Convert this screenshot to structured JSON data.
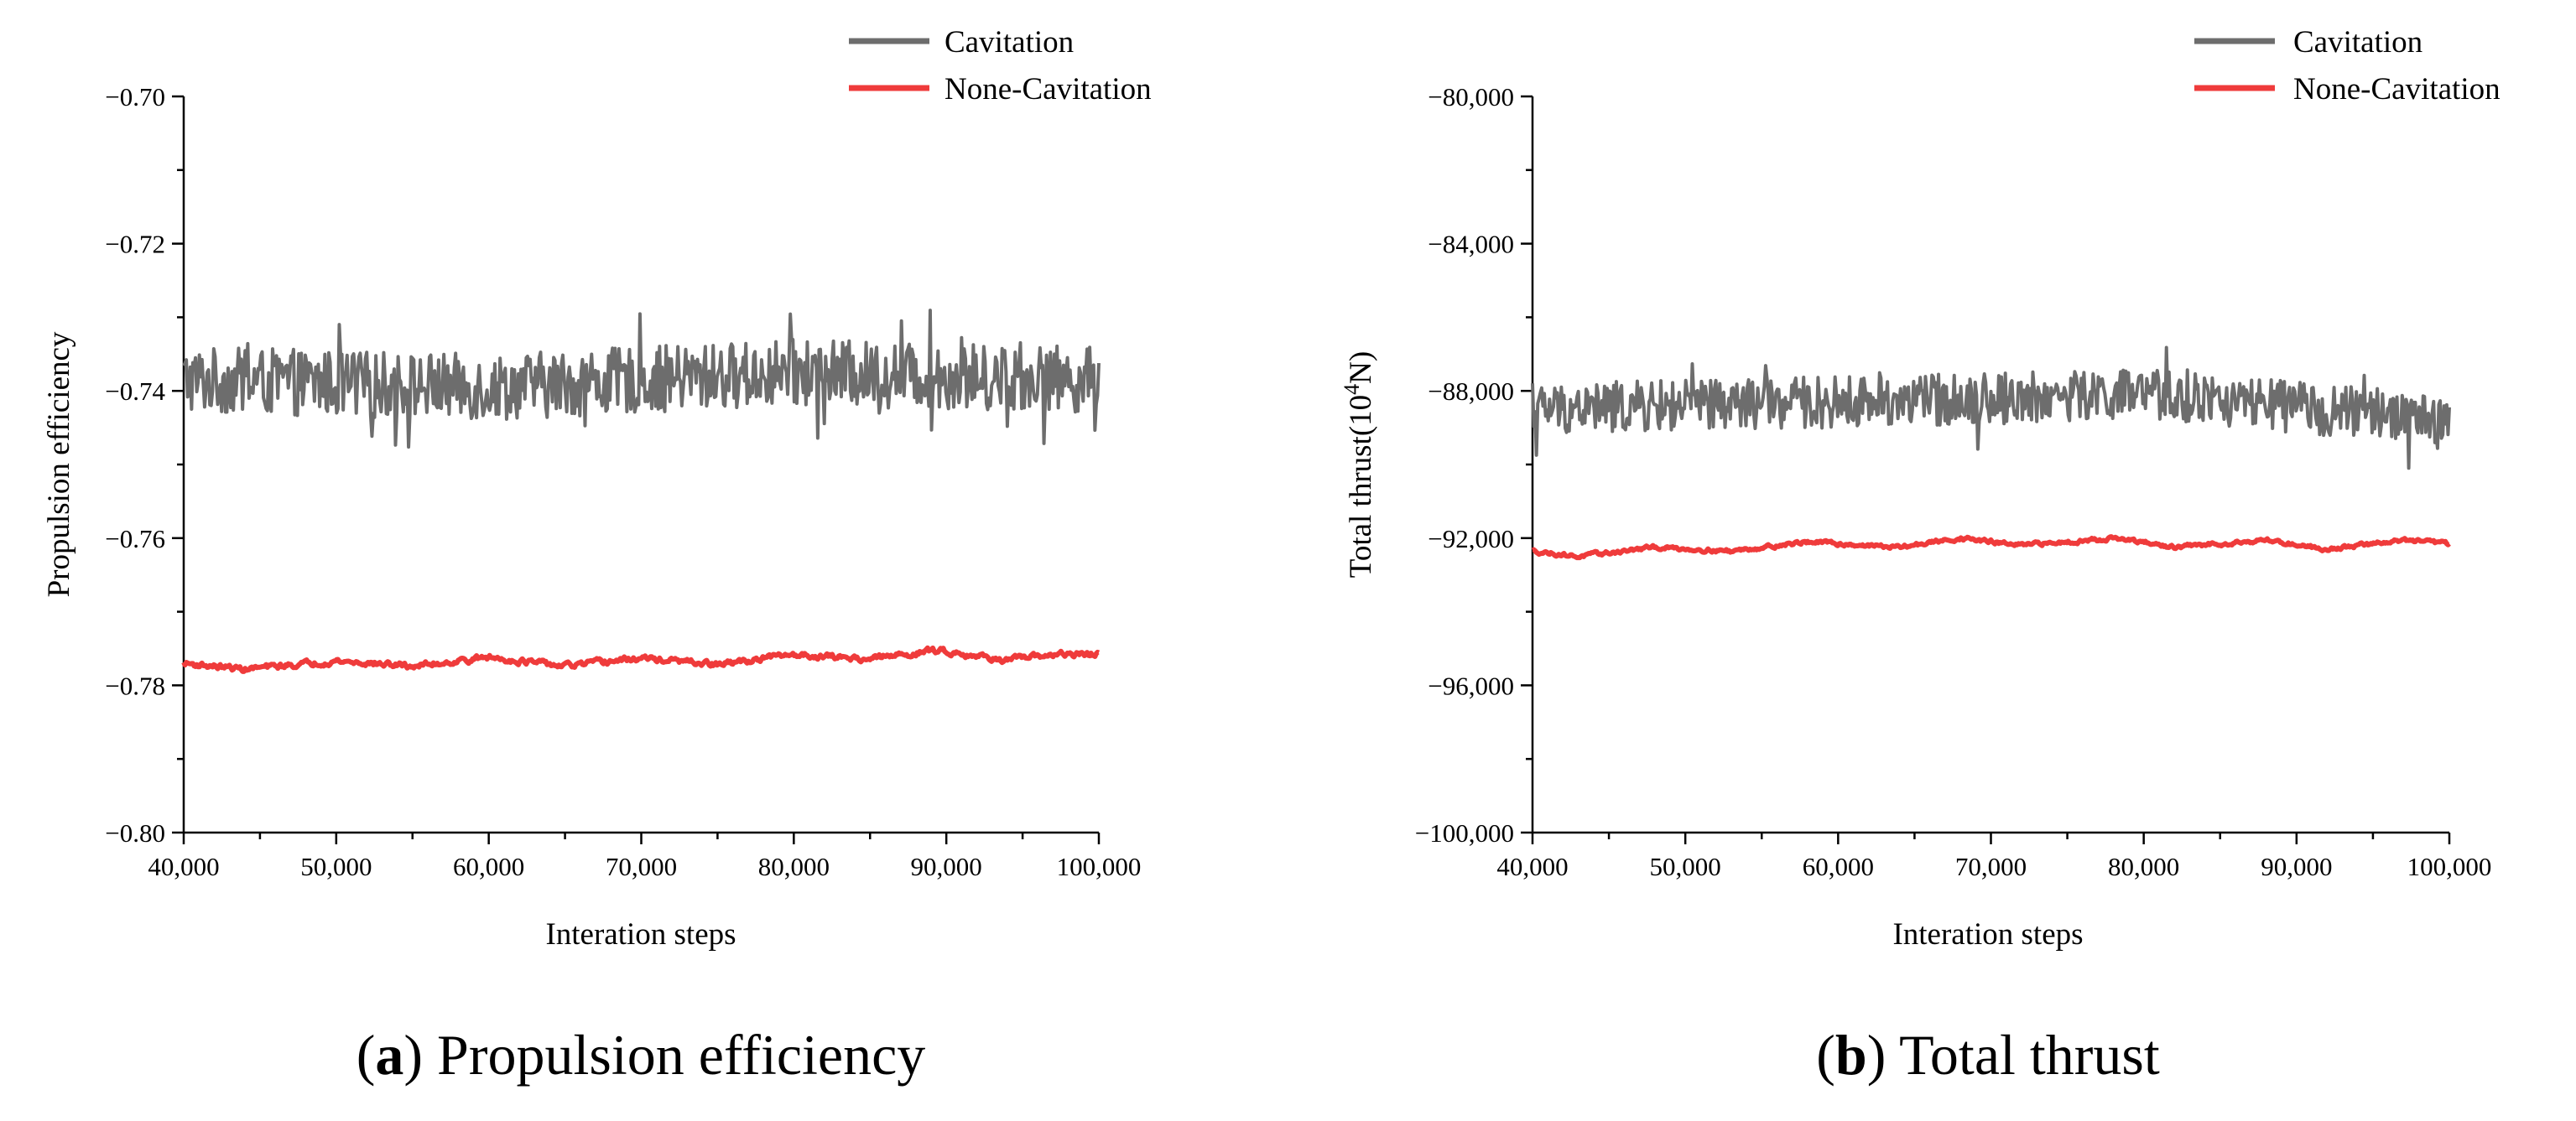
{
  "chart_data": [
    {
      "type": "line",
      "title": "Propulsion efficiency",
      "caption": {
        "letter": "a",
        "text": " Propulsion efficiency"
      },
      "xlabel": "Interation steps",
      "ylabel": "Propulsion efficiency",
      "xlim": [
        40000,
        100000
      ],
      "ylim": [
        -0.8,
        -0.7
      ],
      "x_ticks": [
        40000,
        50000,
        60000,
        70000,
        80000,
        90000,
        100000
      ],
      "x_tick_labels": [
        "40,000",
        "50,000",
        "60,000",
        "70,000",
        "80,000",
        "90,000",
        "100,000"
      ],
      "y_ticks": [
        -0.8,
        -0.78,
        -0.76,
        -0.74,
        -0.72,
        -0.7
      ],
      "y_tick_labels": [
        "−0.80",
        "−0.78",
        "−0.76",
        "−0.74",
        "−0.72",
        "−0.70"
      ],
      "legend_position": "top-right",
      "series": [
        {
          "name": "Cavitation",
          "color": "#6d6d6d",
          "x_range": [
            40000,
            100000
          ],
          "points": 700,
          "mean": -0.7385,
          "noise_amplitude": 0.0045,
          "min": -0.751,
          "max": -0.7275,
          "trend": [
            [
              40000,
              -0.7385
            ],
            [
              60000,
              -0.7395
            ],
            [
              80000,
              -0.7375
            ],
            [
              100000,
              -0.7385
            ]
          ]
        },
        {
          "name": "None-Cavitation",
          "color": "#ef3b3b",
          "x_range": [
            40000,
            100000
          ],
          "points": 700,
          "mean": -0.7765,
          "noise_amplitude": 0.0003,
          "trend": [
            [
              40000,
              -0.777
            ],
            [
              44000,
              -0.7778
            ],
            [
              50000,
              -0.7767
            ],
            [
              55000,
              -0.7774
            ],
            [
              60000,
              -0.7762
            ],
            [
              65000,
              -0.7774
            ],
            [
              70000,
              -0.7763
            ],
            [
              75000,
              -0.7772
            ],
            [
              80000,
              -0.7758
            ],
            [
              85000,
              -0.7764
            ],
            [
              89500,
              -0.7752
            ],
            [
              94000,
              -0.7766
            ],
            [
              97000,
              -0.7758
            ],
            [
              100000,
              -0.7758
            ]
          ]
        }
      ]
    },
    {
      "type": "line",
      "title": "Total thrust",
      "caption": {
        "letter": "b",
        "text": " Total thrust"
      },
      "xlabel": "Interation steps",
      "ylabel_parts": [
        "Total thrust(10",
        "4",
        "N)"
      ],
      "xlim": [
        40000,
        100000
      ],
      "ylim": [
        -100000,
        -80000
      ],
      "x_ticks": [
        40000,
        50000,
        60000,
        70000,
        80000,
        90000,
        100000
      ],
      "x_tick_labels": [
        "40,000",
        "50,000",
        "60,000",
        "70,000",
        "80,000",
        "90,000",
        "100,000"
      ],
      "y_ticks": [
        -100000,
        -96000,
        -92000,
        -88000,
        -84000,
        -80000
      ],
      "y_tick_labels": [
        "−100,000",
        "−96,000",
        "−92,000",
        "−88,000",
        "−84,000",
        "−80,000"
      ],
      "legend_position": "top-right",
      "series": [
        {
          "name": "Cavitation",
          "color": "#6d6d6d",
          "x_range": [
            40000,
            100000
          ],
          "points": 700,
          "mean": -88400,
          "noise_amplitude": 700,
          "min": -90500,
          "max": -86200,
          "trend": [
            [
              40000,
              -88500
            ],
            [
              60000,
              -88300
            ],
            [
              80000,
              -88100
            ],
            [
              100000,
              -88800
            ]
          ]
        },
        {
          "name": "None-Cavitation",
          "color": "#ef3b3b",
          "x_range": [
            40000,
            100000
          ],
          "points": 700,
          "mean": -92200,
          "noise_amplitude": 40,
          "trend": [
            [
              40000,
              -92350
            ],
            [
              43000,
              -92500
            ],
            [
              48000,
              -92250
            ],
            [
              53000,
              -92350
            ],
            [
              58000,
              -92100
            ],
            [
              64000,
              -92250
            ],
            [
              68000,
              -92000
            ],
            [
              72000,
              -92200
            ],
            [
              78000,
              -92000
            ],
            [
              82000,
              -92250
            ],
            [
              88000,
              -92050
            ],
            [
              92000,
              -92300
            ],
            [
              97000,
              -92050
            ],
            [
              100000,
              -92150
            ]
          ]
        }
      ]
    }
  ]
}
